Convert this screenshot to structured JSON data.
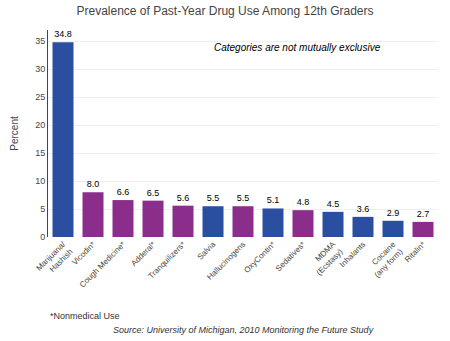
{
  "chart_data": {
    "type": "bar",
    "title": "Prevalence of Past-Year Drug Use Among 12th Graders",
    "ylabel": "Percent",
    "categories": [
      "Marijuana/\nHashish",
      "Vicodin*",
      "Cough Medicine*",
      "Adderal*",
      "Tranquilizers*",
      "Salvia",
      "Hallucinogens",
      "OxyContin*",
      "Sedatives*",
      "MDMA\n(Ecstasy)",
      "Inhalants",
      "Cocaine\n(any form)",
      "Ritalin*"
    ],
    "values": [
      34.8,
      8.0,
      6.6,
      6.5,
      5.6,
      5.5,
      5.5,
      5.1,
      4.8,
      4.5,
      3.6,
      2.9,
      2.7
    ],
    "value_labels": [
      "34.8",
      "8.0",
      "6.6",
      "6.5",
      "5.6",
      "5.5",
      "5.5",
      "5.1",
      "4.8",
      "4.5",
      "3.6",
      "2.9",
      "2.7"
    ],
    "colors": [
      "#2B4FA0",
      "#8B2D8B",
      "#8B2D8B",
      "#8B2D8B",
      "#8B2D8B",
      "#2B4FA0",
      "#8B2D8B",
      "#2B4FA0",
      "#8B2D8B",
      "#2B4FA0",
      "#2B4FA0",
      "#2B4FA0",
      "#8B2D8B"
    ],
    "ylim": [
      0,
      37
    ],
    "yticks": [
      0,
      5,
      10,
      15,
      20,
      25,
      30,
      35
    ],
    "grid": true,
    "data_labels": true,
    "annotations": [
      "Categories are not mutually exclusive"
    ],
    "footnotes": [
      "*Nonmedical Use",
      "Source: University of Michigan, 2010 Monitoring the Future Study"
    ]
  }
}
